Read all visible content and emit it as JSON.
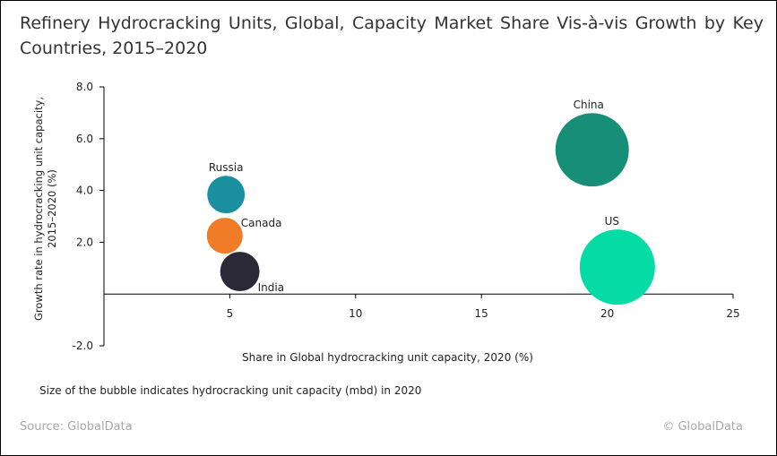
{
  "title": "Refinery Hydrocracking Units, Global, Capacity Market Share Vis-à-vis Growth by Key Countries, 2015–2020",
  "note": "Size of the bubble indicates hydrocracking unit capacity (mbd) in 2020",
  "source": "Source: GlobalData",
  "copyright": "© GlobalData",
  "chart_data": {
    "type": "scatter",
    "subtype": "bubble",
    "xlabel": "Share in Global hydrocracking unit capacity, 2020 (%)",
    "ylabel": "Growth rate in hydrocracking unit capacity, 2015–2020 (%)",
    "xlim": [
      0,
      25
    ],
    "ylim": [
      -2.0,
      8.0
    ],
    "xticks": [
      "5",
      "10",
      "15",
      "20",
      "25"
    ],
    "yticks": [
      "8.0",
      "6.0",
      "4.0",
      "2.0",
      "-2.0"
    ],
    "grid": false,
    "points": [
      {
        "label": "Russia",
        "x": 4.85,
        "y": 3.84,
        "size": 0.6,
        "color": "#1a8fa0"
      },
      {
        "label": "Canada",
        "x": 4.8,
        "y": 2.25,
        "size": 0.55,
        "color": "#f07c28"
      },
      {
        "label": "India",
        "x": 5.4,
        "y": 0.87,
        "size": 0.66,
        "color": "#2b2838"
      },
      {
        "label": "China",
        "x": 19.4,
        "y": 5.57,
        "size": 2.3,
        "color": "#178f78"
      },
      {
        "label": "US",
        "x": 20.4,
        "y": 1.04,
        "size": 2.42,
        "color": "#05dba4"
      }
    ]
  }
}
